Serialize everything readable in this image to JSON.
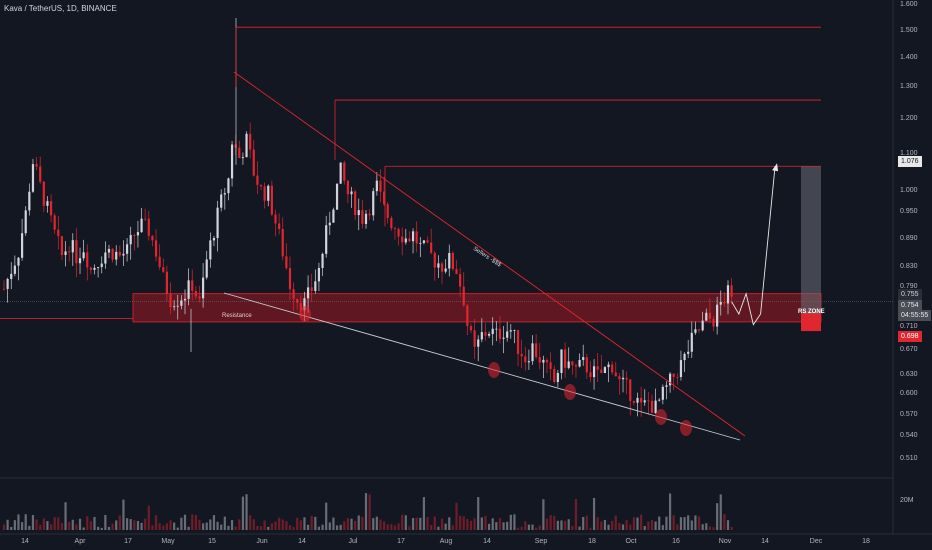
{
  "header": {
    "symbol_title": "Kava / TetherUS, 1D, BINANCE"
  },
  "price_axis": {
    "ticks": [
      "1.600",
      "1.500",
      "1.400",
      "1.300",
      "1.200",
      "1.100",
      "1.000",
      "0.950",
      "0.890",
      "0.830",
      "0.790",
      "0.710",
      "0.670",
      "0.630",
      "0.600",
      "0.570",
      "0.540",
      "0.510"
    ],
    "volume_tick": "20M"
  },
  "time_axis": {
    "ticks": [
      "14",
      "Apr",
      "17",
      "May",
      "15",
      "Jun",
      "14",
      "Jul",
      "17",
      "Aug",
      "14",
      "Sep",
      "18",
      "Oct",
      "16",
      "Nov",
      "14",
      "Dec",
      "18"
    ]
  },
  "price_badges": {
    "target": "1.076",
    "last_price": "0.755",
    "current": "0.754",
    "countdown": "04:55:55",
    "low": "0.698"
  },
  "annotations": {
    "resistance_label": "Resistance",
    "rs_zone_label": "RS ZONE",
    "sellers_label": "Sellers -$$$"
  },
  "colors": {
    "background": "#131722",
    "up_candle": "#d1d4dc",
    "down_candle": "#e0262f",
    "zone_fill": "#7a1a22",
    "line_red": "#e0262f",
    "text": "#b2b5be"
  },
  "chart_data": {
    "type": "candlestick",
    "symbol": "Kava / TetherUS",
    "timeframe": "1D",
    "exchange": "BINANCE",
    "y_scale": "log",
    "ylim": [
      0.495,
      1.63
    ],
    "key_levels": [
      1.55,
      1.28,
      1.076
    ],
    "zone": {
      "name": "RS ZONE",
      "low": 0.715,
      "high": 0.77
    },
    "price_path": [
      [
        0,
        0.78
      ],
      [
        2,
        0.82
      ],
      [
        4,
        0.86
      ],
      [
        6,
        0.95
      ],
      [
        8,
        1.09
      ],
      [
        10,
        1.02
      ],
      [
        12,
        0.96
      ],
      [
        14,
        0.9
      ],
      [
        16,
        0.85
      ],
      [
        18,
        0.88
      ],
      [
        20,
        0.85
      ],
      [
        22,
        0.87
      ],
      [
        24,
        0.82
      ],
      [
        26,
        0.84
      ],
      [
        28,
        0.86
      ],
      [
        30,
        0.86
      ],
      [
        32,
        0.85
      ],
      [
        34,
        0.86
      ],
      [
        36,
        0.9
      ],
      [
        38,
        0.92
      ],
      [
        40,
        0.91
      ],
      [
        42,
        0.86
      ],
      [
        44,
        0.8
      ],
      [
        46,
        0.76
      ],
      [
        48,
        0.76
      ],
      [
        50,
        0.77
      ],
      [
        52,
        0.79
      ],
      [
        54,
        0.75
      ],
      [
        56,
        0.84
      ],
      [
        58,
        0.91
      ],
      [
        60,
        0.98
      ],
      [
        62,
        1.04
      ],
      [
        63,
        1.15
      ],
      [
        65,
        1.1
      ],
      [
        67,
        1.15
      ],
      [
        69,
        1.06
      ],
      [
        71,
        1.01
      ],
      [
        73,
        1.0
      ],
      [
        75,
        0.93
      ],
      [
        77,
        0.86
      ],
      [
        79,
        0.79
      ],
      [
        81,
        0.76
      ],
      [
        83,
        0.75
      ],
      [
        85,
        0.78
      ],
      [
        87,
        0.82
      ],
      [
        89,
        0.9
      ],
      [
        91,
        0.98
      ],
      [
        93,
        1.06
      ],
      [
        95,
        1.0
      ],
      [
        97,
        0.97
      ],
      [
        99,
        0.94
      ],
      [
        101,
        0.97
      ],
      [
        103,
        1.02
      ],
      [
        105,
        0.96
      ],
      [
        107,
        0.93
      ],
      [
        109,
        0.91
      ],
      [
        111,
        0.89
      ],
      [
        113,
        0.9
      ],
      [
        115,
        0.87
      ],
      [
        117,
        0.86
      ],
      [
        119,
        0.84
      ],
      [
        121,
        0.83
      ],
      [
        123,
        0.84
      ],
      [
        125,
        0.82
      ],
      [
        127,
        0.76
      ],
      [
        128,
        0.71
      ],
      [
        130,
        0.66
      ],
      [
        132,
        0.69
      ],
      [
        134,
        0.7
      ],
      [
        136,
        0.69
      ],
      [
        138,
        0.7
      ],
      [
        140,
        0.7
      ],
      [
        142,
        0.67
      ],
      [
        144,
        0.65
      ],
      [
        146,
        0.67
      ],
      [
        148,
        0.65
      ],
      [
        150,
        0.63
      ],
      [
        152,
        0.61
      ],
      [
        154,
        0.65
      ],
      [
        156,
        0.64
      ],
      [
        158,
        0.63
      ],
      [
        160,
        0.64
      ],
      [
        162,
        0.63
      ],
      [
        164,
        0.62
      ],
      [
        166,
        0.63
      ],
      [
        168,
        0.64
      ],
      [
        170,
        0.61
      ],
      [
        172,
        0.6
      ],
      [
        174,
        0.59
      ],
      [
        176,
        0.57
      ],
      [
        178,
        0.58
      ],
      [
        180,
        0.57
      ],
      [
        182,
        0.59
      ],
      [
        184,
        0.61
      ],
      [
        186,
        0.63
      ],
      [
        188,
        0.65
      ],
      [
        190,
        0.68
      ],
      [
        192,
        0.7
      ],
      [
        194,
        0.72
      ],
      [
        196,
        0.72
      ],
      [
        198,
        0.75
      ],
      [
        200,
        0.77
      ],
      [
        201,
        0.754
      ]
    ],
    "projection_path": [
      [
        201,
        0.754
      ],
      [
        203,
        0.73
      ],
      [
        205,
        0.77
      ],
      [
        207,
        0.71
      ],
      [
        209,
        0.73
      ],
      [
        213,
        1.076
      ]
    ],
    "x_date_ticks": [
      "14",
      "Apr",
      "17",
      "May",
      "15",
      "Jun",
      "14",
      "Jul",
      "17",
      "Aug",
      "14",
      "Sep",
      "18",
      "Oct",
      "16",
      "Nov",
      "14",
      "Dec",
      "18"
    ]
  }
}
